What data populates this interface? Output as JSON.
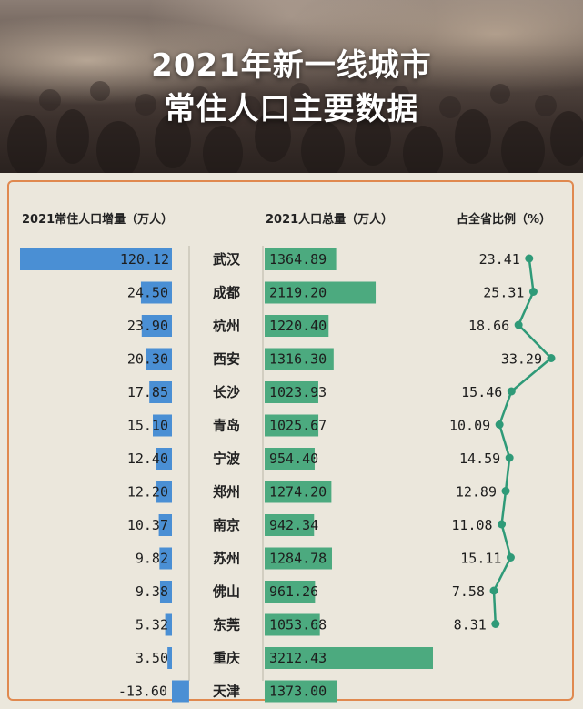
{
  "header": {
    "title_line1": "2021年新一线城市",
    "title_line2": "常住人口主要数据"
  },
  "columns": {
    "increase": "2021常住人口增量（万人）",
    "total": "2021人口总量（万人）",
    "share": "占全省比例（%）"
  },
  "colors": {
    "increase_bar": "#4a8fd4",
    "total_bar": "#4caa7f",
    "share_line": "#2f9a78",
    "panel_border": "#e0894f"
  },
  "chart_data": {
    "type": "bar",
    "categories": [
      "武汉",
      "成都",
      "杭州",
      "西安",
      "长沙",
      "青岛",
      "宁波",
      "郑州",
      "南京",
      "苏州",
      "佛山",
      "东莞",
      "重庆",
      "天津"
    ],
    "series": [
      {
        "name": "2021常住人口增量（万人）",
        "values": [
          120.12,
          24.5,
          23.9,
          20.3,
          17.85,
          15.1,
          12.4,
          12.2,
          10.37,
          9.82,
          9.38,
          5.32,
          3.5,
          -13.6
        ]
      },
      {
        "name": "2021人口总量（万人）",
        "values": [
          1364.89,
          2119.2,
          1220.4,
          1316.3,
          1023.93,
          1025.67,
          954.4,
          1274.2,
          942.34,
          1284.78,
          961.26,
          1053.68,
          3212.43,
          1373.0
        ]
      },
      {
        "name": "占全省比例（%）",
        "values": [
          23.41,
          25.31,
          18.66,
          33.29,
          15.46,
          10.09,
          14.59,
          12.89,
          11.08,
          15.11,
          7.58,
          8.31,
          null,
          null
        ]
      }
    ]
  }
}
